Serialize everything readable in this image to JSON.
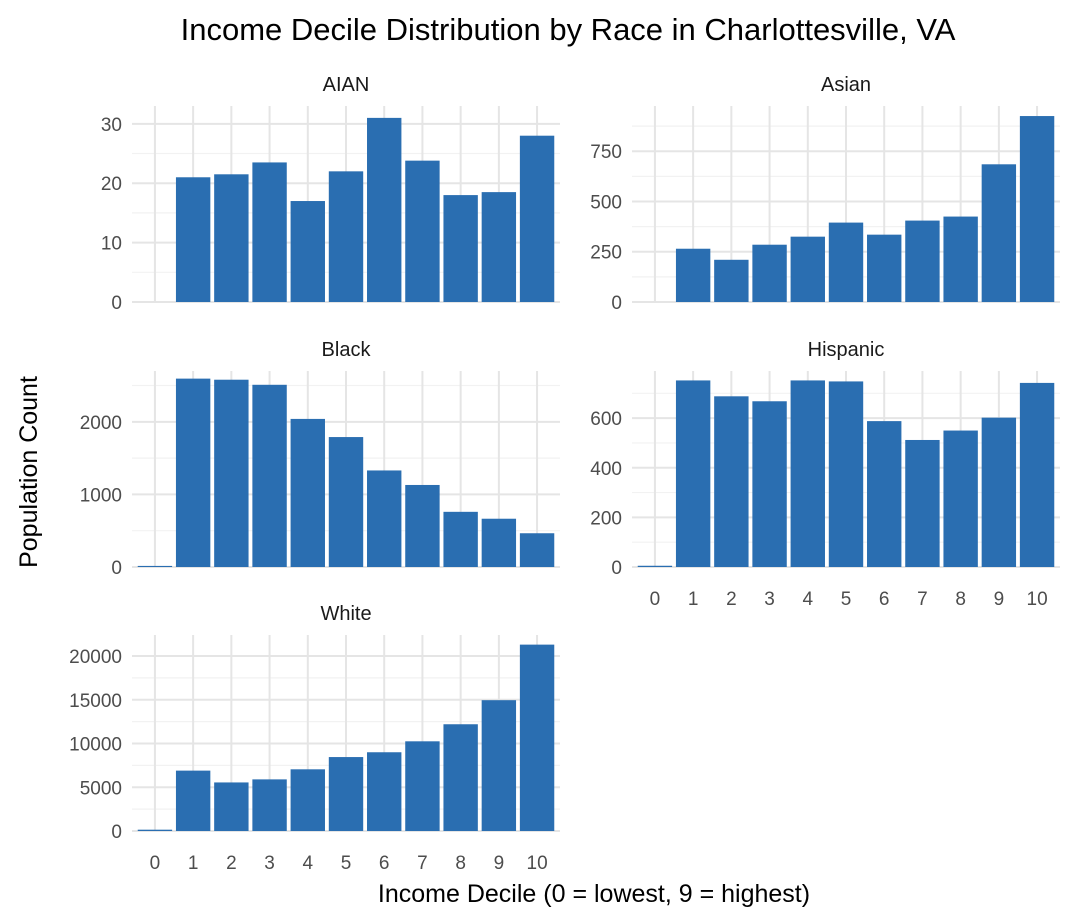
{
  "chart_data": {
    "type": "bar",
    "title": "Income Decile Distribution by Race in Charlottesville, VA",
    "xlabel": "Income Decile (0 = lowest, 9 = highest)",
    "ylabel": "Population Count",
    "categories": [
      "0",
      "1",
      "2",
      "3",
      "4",
      "5",
      "6",
      "7",
      "8",
      "9",
      "10"
    ],
    "bar_color": "#2a6eb1",
    "grid": true,
    "legend": "none",
    "facets": [
      {
        "name": "AIAN",
        "values": [
          0,
          21,
          21.5,
          23.5,
          17,
          22,
          31,
          23.8,
          18,
          18.5,
          28
        ],
        "ylim": [
          0,
          33
        ],
        "yticks": [
          0,
          10,
          20,
          30
        ],
        "ytick_labels": [
          "0",
          "10",
          "20",
          "30"
        ]
      },
      {
        "name": "Asian",
        "values": [
          0,
          265,
          210,
          285,
          325,
          395,
          335,
          405,
          425,
          685,
          925
        ],
        "ylim": [
          0,
          975
        ],
        "yticks": [
          0,
          250,
          500,
          750
        ],
        "ytick_labels": [
          "0",
          "250",
          "500",
          "750"
        ]
      },
      {
        "name": "Black",
        "values": [
          15,
          2595,
          2580,
          2510,
          2040,
          1790,
          1330,
          1130,
          760,
          665,
          465
        ],
        "ylim": [
          0,
          2700
        ],
        "yticks": [
          0,
          1000,
          2000
        ],
        "ytick_labels": [
          "0",
          "1000",
          "2000"
        ]
      },
      {
        "name": "Hispanic",
        "values": [
          5,
          752,
          688,
          668,
          752,
          748,
          588,
          512,
          550,
          602,
          742
        ],
        "ylim": [
          0,
          790
        ],
        "yticks": [
          0,
          200,
          400,
          600
        ],
        "ytick_labels": [
          "0",
          "200",
          "400",
          "600"
        ]
      },
      {
        "name": "White",
        "values": [
          150,
          6900,
          5550,
          5900,
          7050,
          8450,
          9000,
          10250,
          12200,
          14950,
          21300
        ],
        "ylim": [
          0,
          22400
        ],
        "yticks": [
          0,
          5000,
          10000,
          15000,
          20000
        ],
        "ytick_labels": [
          "0",
          "5000",
          "10000",
          "15000",
          "20000"
        ]
      }
    ]
  }
}
